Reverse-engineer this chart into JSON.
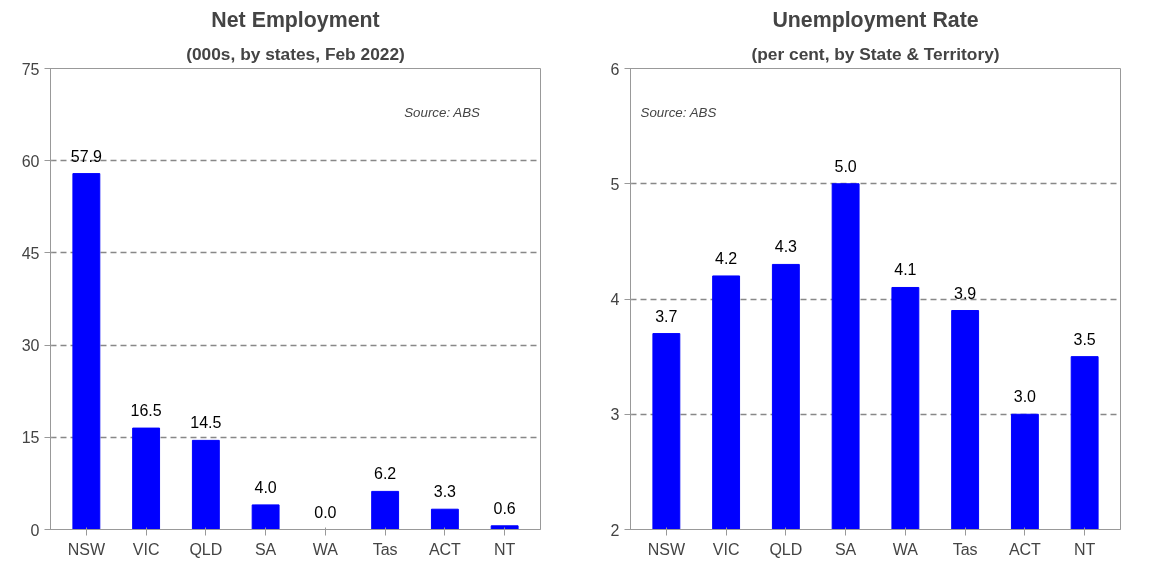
{
  "chart_data": [
    {
      "type": "bar",
      "title": "Net Employment",
      "subtitle": "(000s, by states, Feb 2022)",
      "categories": [
        "NSW",
        "VIC",
        "QLD",
        "SA",
        "WA",
        "Tas",
        "ACT",
        "NT"
      ],
      "values": [
        57.9,
        16.5,
        14.5,
        4.0,
        0.0,
        6.2,
        3.3,
        0.6
      ],
      "value_labels": [
        "57.9",
        "16.5",
        "14.5",
        "4.0",
        "0.0",
        "6.2",
        "3.3",
        "0.6"
      ],
      "color": "#0000ff",
      "ylim": [
        0,
        75
      ],
      "yticks": [
        0,
        15,
        30,
        45,
        60,
        75
      ],
      "grid": "y",
      "annotations": [
        "Source: ABS"
      ]
    },
    {
      "type": "bar",
      "title": "Unemployment Rate",
      "subtitle": "(per cent, by State & Territory)",
      "categories": [
        "NSW",
        "VIC",
        "QLD",
        "SA",
        "WA",
        "Tas",
        "ACT",
        "NT"
      ],
      "values": [
        3.7,
        4.2,
        4.3,
        5.0,
        4.1,
        3.9,
        3.0,
        3.5
      ],
      "value_labels": [
        "3.7",
        "4.2",
        "4.3",
        "5.0",
        "4.1",
        "3.9",
        "3.0",
        "3.5"
      ],
      "color": "#0000ff",
      "ylim": [
        2,
        6
      ],
      "yticks": [
        2,
        3,
        4,
        5,
        6
      ],
      "grid": "y",
      "annotations": [
        "Source: ABS"
      ]
    }
  ]
}
